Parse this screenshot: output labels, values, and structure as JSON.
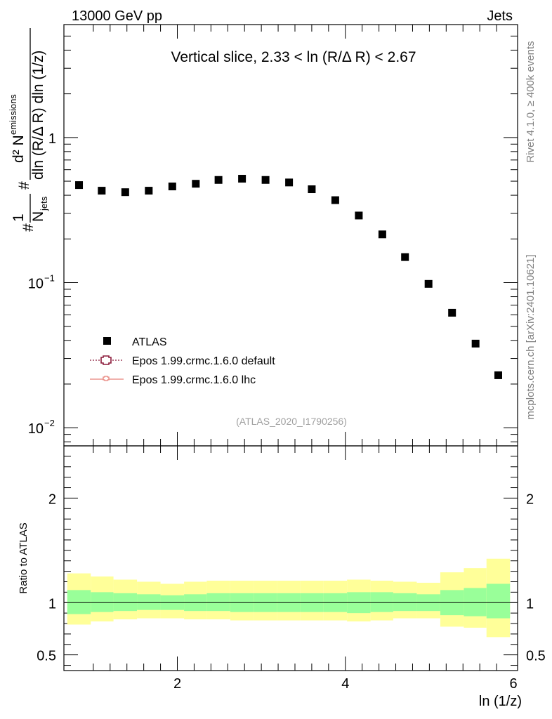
{
  "header": {
    "left": "13000 GeV pp",
    "right": "Jets"
  },
  "side": {
    "rivet": "Rivet 4.1.0, ≥ 400k events",
    "mcplots": "mcplots.cern.ch [arXiv:2401.10621]"
  },
  "colors": {
    "data": "#000000",
    "epos_default": "#8b1a3a",
    "epos_lhc": "#e8827a",
    "band_inner": "#99ff99",
    "band_outer": "#ffff99"
  },
  "chart_data": {
    "type": "scatter",
    "title": "Vertical slice, 2.33 < ln (R/Δ R) < 2.67",
    "analysis_label": "(ATLAS_2020_I1790256)",
    "xlabel": "ln (1/z)",
    "ylabel_parts": {
      "one": "1",
      "njets": "N",
      "njets_sub": "jets",
      "hash_left": "#",
      "hash_mid": "#",
      "num": "d² N",
      "num_sub": "emissions",
      "den": "dln (R/Δ R) dln (1/z)"
    },
    "xlim": [
      0.65,
      6.05
    ],
    "ylim": [
      0.0075,
      6.0
    ],
    "yscale": "log",
    "x_ticks": [
      2,
      4,
      6
    ],
    "x_tick_labels": [
      "2",
      "4",
      "6"
    ],
    "y_ticks": [
      0.01,
      0.1,
      1
    ],
    "y_tick_labels": [
      {
        "base": "10",
        "exp": "−2"
      },
      {
        "base": "10",
        "exp": "−1"
      },
      {
        "base": "1",
        "exp": ""
      }
    ],
    "legend": [
      "ATLAS",
      "Epos 1.99.crmc.1.6.0 default",
      "Epos 1.99.crmc.1.6.0 lhc"
    ],
    "series": [
      {
        "name": "ATLAS",
        "x": [
          0.83,
          1.1,
          1.38,
          1.66,
          1.94,
          2.22,
          2.49,
          2.77,
          3.05,
          3.33,
          3.6,
          3.88,
          4.16,
          4.44,
          4.71,
          4.99,
          5.27,
          5.55,
          5.82
        ],
        "y": [
          0.47,
          0.43,
          0.42,
          0.43,
          0.46,
          0.48,
          0.51,
          0.52,
          0.51,
          0.49,
          0.44,
          0.37,
          0.29,
          0.215,
          0.15,
          0.098,
          0.062,
          0.038,
          0.023
        ]
      }
    ],
    "ratio": {
      "ylabel": "Ratio to ATLAS",
      "ylim": [
        0.35,
        2.5
      ],
      "y_ticks": [
        0.5,
        1,
        2
      ],
      "y_tick_labels": [
        "0.5",
        "1",
        "2"
      ],
      "bin_edges": [
        0.69,
        0.97,
        1.24,
        1.52,
        1.8,
        2.08,
        2.35,
        2.63,
        2.91,
        3.19,
        3.46,
        3.74,
        4.02,
        4.3,
        4.57,
        4.85,
        5.13,
        5.41,
        5.68,
        5.96
      ],
      "inner_lo": [
        0.89,
        0.91,
        0.92,
        0.93,
        0.93,
        0.92,
        0.92,
        0.91,
        0.91,
        0.91,
        0.91,
        0.91,
        0.9,
        0.91,
        0.92,
        0.92,
        0.88,
        0.87,
        0.85
      ],
      "inner_hi": [
        1.12,
        1.1,
        1.09,
        1.08,
        1.07,
        1.08,
        1.09,
        1.09,
        1.09,
        1.09,
        1.09,
        1.09,
        1.1,
        1.1,
        1.09,
        1.08,
        1.12,
        1.14,
        1.18
      ],
      "outer_lo": [
        0.79,
        0.82,
        0.84,
        0.85,
        0.85,
        0.84,
        0.84,
        0.83,
        0.83,
        0.83,
        0.83,
        0.83,
        0.82,
        0.83,
        0.85,
        0.85,
        0.77,
        0.76,
        0.67
      ],
      "outer_hi": [
        1.28,
        1.25,
        1.22,
        1.2,
        1.18,
        1.2,
        1.21,
        1.21,
        1.21,
        1.21,
        1.21,
        1.21,
        1.22,
        1.21,
        1.2,
        1.19,
        1.29,
        1.33,
        1.42
      ]
    }
  }
}
